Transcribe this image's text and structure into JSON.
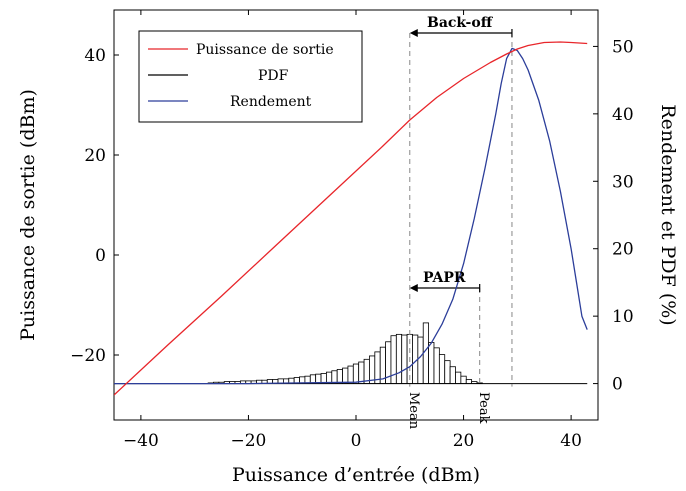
{
  "chart_data": {
    "type": "line",
    "title": "",
    "xlabel": "Puissance d’entrée (dBm)",
    "ylabel_left": "Puissance de sortie (dBm)",
    "ylabel_right": "Rendement et PDF (%)",
    "xlim": [
      -45,
      45
    ],
    "ylim_left": [
      -33,
      49
    ],
    "ylim_right": [
      -5.4,
      55.4
    ],
    "x_ticks": [
      -40,
      -20,
      0,
      20,
      40
    ],
    "y_left_ticks": [
      -20,
      0,
      20,
      40
    ],
    "y_right_ticks": [
      0,
      10,
      20,
      30,
      40,
      50
    ],
    "x_tick_labels": [
      "−40",
      "−20",
      "0",
      "20",
      "40"
    ],
    "y_left_tick_labels": [
      "−20",
      "0",
      "20",
      "40"
    ],
    "y_right_tick_labels": [
      "0",
      "10",
      "20",
      "30",
      "40",
      "50"
    ],
    "grid": false,
    "legend_position": "top-left",
    "series": [
      {
        "name": "Puissance de sortie",
        "axis": "left",
        "color": "#e8262b",
        "x": [
          -45,
          -35,
          -25,
          -15,
          -5,
          5,
          10,
          15,
          20,
          25,
          28,
          30,
          32,
          35,
          38,
          40,
          43
        ],
        "y": [
          -28,
          -18,
          -8.2,
          1.8,
          11.8,
          21.8,
          27,
          31.5,
          35.3,
          38.5,
          40.2,
          41.2,
          41.9,
          42.5,
          42.6,
          42.5,
          42.3
        ]
      },
      {
        "name": "PDF",
        "axis": "right",
        "color": "#000000",
        "x": [
          -45,
          -44,
          -43,
          -42,
          -41,
          -40,
          -39,
          -38,
          -37,
          -36,
          -35,
          -34,
          -33,
          -32,
          -31,
          -30,
          -29,
          -28,
          -27,
          -26,
          -25,
          -24,
          -23,
          -22,
          -21,
          -20,
          -19,
          -18,
          -17,
          -16,
          -15,
          -14,
          -13,
          -12,
          -11,
          -10,
          -9,
          -8,
          -7,
          -6,
          -5,
          -4,
          -3,
          -2,
          -1,
          0,
          1,
          2,
          3,
          4,
          5,
          6,
          7,
          8,
          9,
          10,
          11,
          12,
          13,
          14,
          15,
          16,
          17,
          18,
          19,
          20,
          21,
          22,
          23,
          24,
          25,
          26
        ],
        "values": [
          0,
          0,
          0,
          0,
          0,
          0,
          0,
          0,
          0,
          0,
          0,
          0,
          0,
          0,
          0,
          0,
          0,
          0,
          0.1,
          0.2,
          0.2,
          0.3,
          0.3,
          0.3,
          0.4,
          0.4,
          0.4,
          0.5,
          0.5,
          0.6,
          0.6,
          0.7,
          0.7,
          0.8,
          0.9,
          1.0,
          1.1,
          1.3,
          1.4,
          1.5,
          1.7,
          1.9,
          2.1,
          2.3,
          2.6,
          2.9,
          3.2,
          3.6,
          4.1,
          4.7,
          5.4,
          6.2,
          7.1,
          7.3,
          7.2,
          7.3,
          7.2,
          6.9,
          9.0,
          6.1,
          5.3,
          4.3,
          3.4,
          2.5,
          1.7,
          1.1,
          0.6,
          0.3,
          0.1,
          0,
          0,
          0
        ]
      },
      {
        "name": "Rendement",
        "axis": "right",
        "color": "#2c3e9a",
        "x": [
          -45,
          -20,
          0,
          5,
          8,
          10,
          12,
          14,
          16,
          18,
          20,
          22,
          24,
          26,
          27,
          28,
          29,
          30,
          31,
          32,
          34,
          36,
          38,
          40,
          41,
          42,
          43
        ],
        "y": [
          0,
          0,
          0.2,
          0.7,
          1.6,
          2.5,
          4.0,
          6.0,
          8.8,
          12.5,
          17.8,
          24.5,
          32.0,
          40.0,
          44.5,
          48.2,
          49.7,
          49.4,
          48.2,
          46.5,
          42.0,
          36.0,
          28.5,
          20.0,
          15.0,
          10.0,
          8.0
        ]
      }
    ],
    "annotations": {
      "back_off_label": "Back-off",
      "papr_label": "PAPR",
      "mean_label": "Mean",
      "peak_label": "Peak",
      "mean_x": 10,
      "peak_x": 23,
      "max_efficiency_x": 29
    }
  }
}
